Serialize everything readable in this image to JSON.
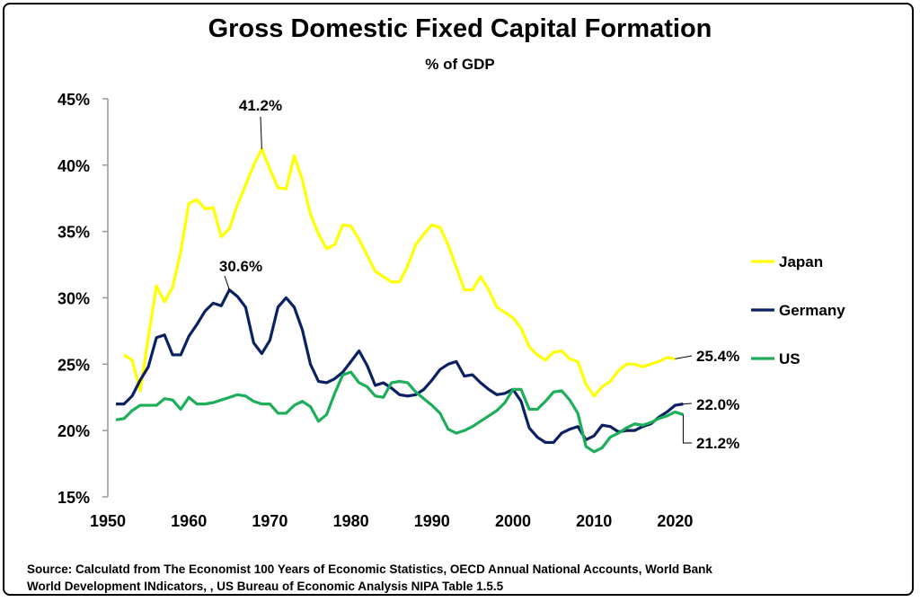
{
  "chart_data": {
    "type": "line",
    "title": "Gross Domestic Fixed Capital Formation",
    "subtitle": "% of GDP",
    "xlabel": "",
    "ylabel": "",
    "xlim": [
      1950,
      2022
    ],
    "ylim": [
      15,
      45
    ],
    "x_ticks": [
      1950,
      1960,
      1970,
      1980,
      1990,
      2000,
      2010,
      2020
    ],
    "y_ticks": [
      "15%",
      "20%",
      "25%",
      "30%",
      "35%",
      "40%",
      "45%"
    ],
    "grid": false,
    "legend_position": "right",
    "series": [
      {
        "name": "Japan",
        "color": "#FFFF00",
        "start_year": 1952,
        "values": [
          25.7,
          25.3,
          23.0,
          27.0,
          30.9,
          29.7,
          30.8,
          33.5,
          37.1,
          37.4,
          36.7,
          36.8,
          34.6,
          35.2,
          37.0,
          38.5,
          40.0,
          41.2,
          39.7,
          38.3,
          38.2,
          40.7,
          38.9,
          36.3,
          34.8,
          33.7,
          34.0,
          35.5,
          35.4,
          34.4,
          33.2,
          32.0,
          31.6,
          31.2,
          31.2,
          32.4,
          34.0,
          34.8,
          35.5,
          35.3,
          34.0,
          32.3,
          30.6,
          30.6,
          31.6,
          30.6,
          29.3,
          28.9,
          28.5,
          27.7,
          26.3,
          25.7,
          25.3,
          25.9,
          26.0,
          25.4,
          25.2,
          23.5,
          22.6,
          23.3,
          23.7,
          24.5,
          25.0,
          25.0,
          24.8,
          25.0,
          25.2,
          25.5,
          25.4
        ]
      },
      {
        "name": "Germany",
        "color": "#0B2161",
        "start_year": 1951,
        "values": [
          22.0,
          22.0,
          22.6,
          23.8,
          24.8,
          27.0,
          27.2,
          25.7,
          25.7,
          27.1,
          28.0,
          29.0,
          29.6,
          29.4,
          30.6,
          30.1,
          29.3,
          26.6,
          25.8,
          26.8,
          29.3,
          30.0,
          29.3,
          27.6,
          25.0,
          23.7,
          23.6,
          23.9,
          24.4,
          25.2,
          26.0,
          24.9,
          23.4,
          23.6,
          23.2,
          22.7,
          22.6,
          22.7,
          23.1,
          23.8,
          24.6,
          25.0,
          25.2,
          24.1,
          24.2,
          23.6,
          23.1,
          22.7,
          22.8,
          23.1,
          22.2,
          20.2,
          19.5,
          19.1,
          19.1,
          19.8,
          20.1,
          20.3,
          19.3,
          19.6,
          20.4,
          20.3,
          19.9,
          20.0,
          20.0,
          20.3,
          20.5,
          21.0,
          21.4,
          21.9,
          22.0
        ]
      },
      {
        "name": "US",
        "color": "#1DAE5A",
        "start_year": 1951,
        "values": [
          20.8,
          20.9,
          21.5,
          21.9,
          21.9,
          21.9,
          22.4,
          22.3,
          21.6,
          22.5,
          22.0,
          22.0,
          22.1,
          22.3,
          22.5,
          22.7,
          22.6,
          22.2,
          22.0,
          22.0,
          21.3,
          21.3,
          21.9,
          22.2,
          21.8,
          20.7,
          21.2,
          22.8,
          24.2,
          24.4,
          23.6,
          23.3,
          22.6,
          22.5,
          23.6,
          23.7,
          23.6,
          22.9,
          22.4,
          21.9,
          21.3,
          20.1,
          19.8,
          20.0,
          20.3,
          20.7,
          21.1,
          21.5,
          22.1,
          23.1,
          23.1,
          21.6,
          21.6,
          22.2,
          22.9,
          23.0,
          22.3,
          21.3,
          18.8,
          18.4,
          18.7,
          19.5,
          19.8,
          20.2,
          20.5,
          20.4,
          20.6,
          20.9,
          21.1,
          21.4,
          21.2
        ]
      }
    ],
    "annotations": [
      {
        "text": "41.2%",
        "series": "Japan",
        "year": 1969
      },
      {
        "text": "30.6%",
        "series": "Germany",
        "year": 1965
      },
      {
        "text": "25.4%",
        "series": "Japan",
        "year": 2020
      },
      {
        "text": "22.0%",
        "series": "Germany",
        "year": 2021
      },
      {
        "text": "21.2%",
        "series": "US",
        "year": 2021
      }
    ],
    "source": "Source: Calculatd from The Economist 100 Years of Economic Statistics, OECD Annual National Accounts, World Bank World Development INdicators, , US Bureau of Economic Analysis NIPA Table 1.5.5"
  }
}
